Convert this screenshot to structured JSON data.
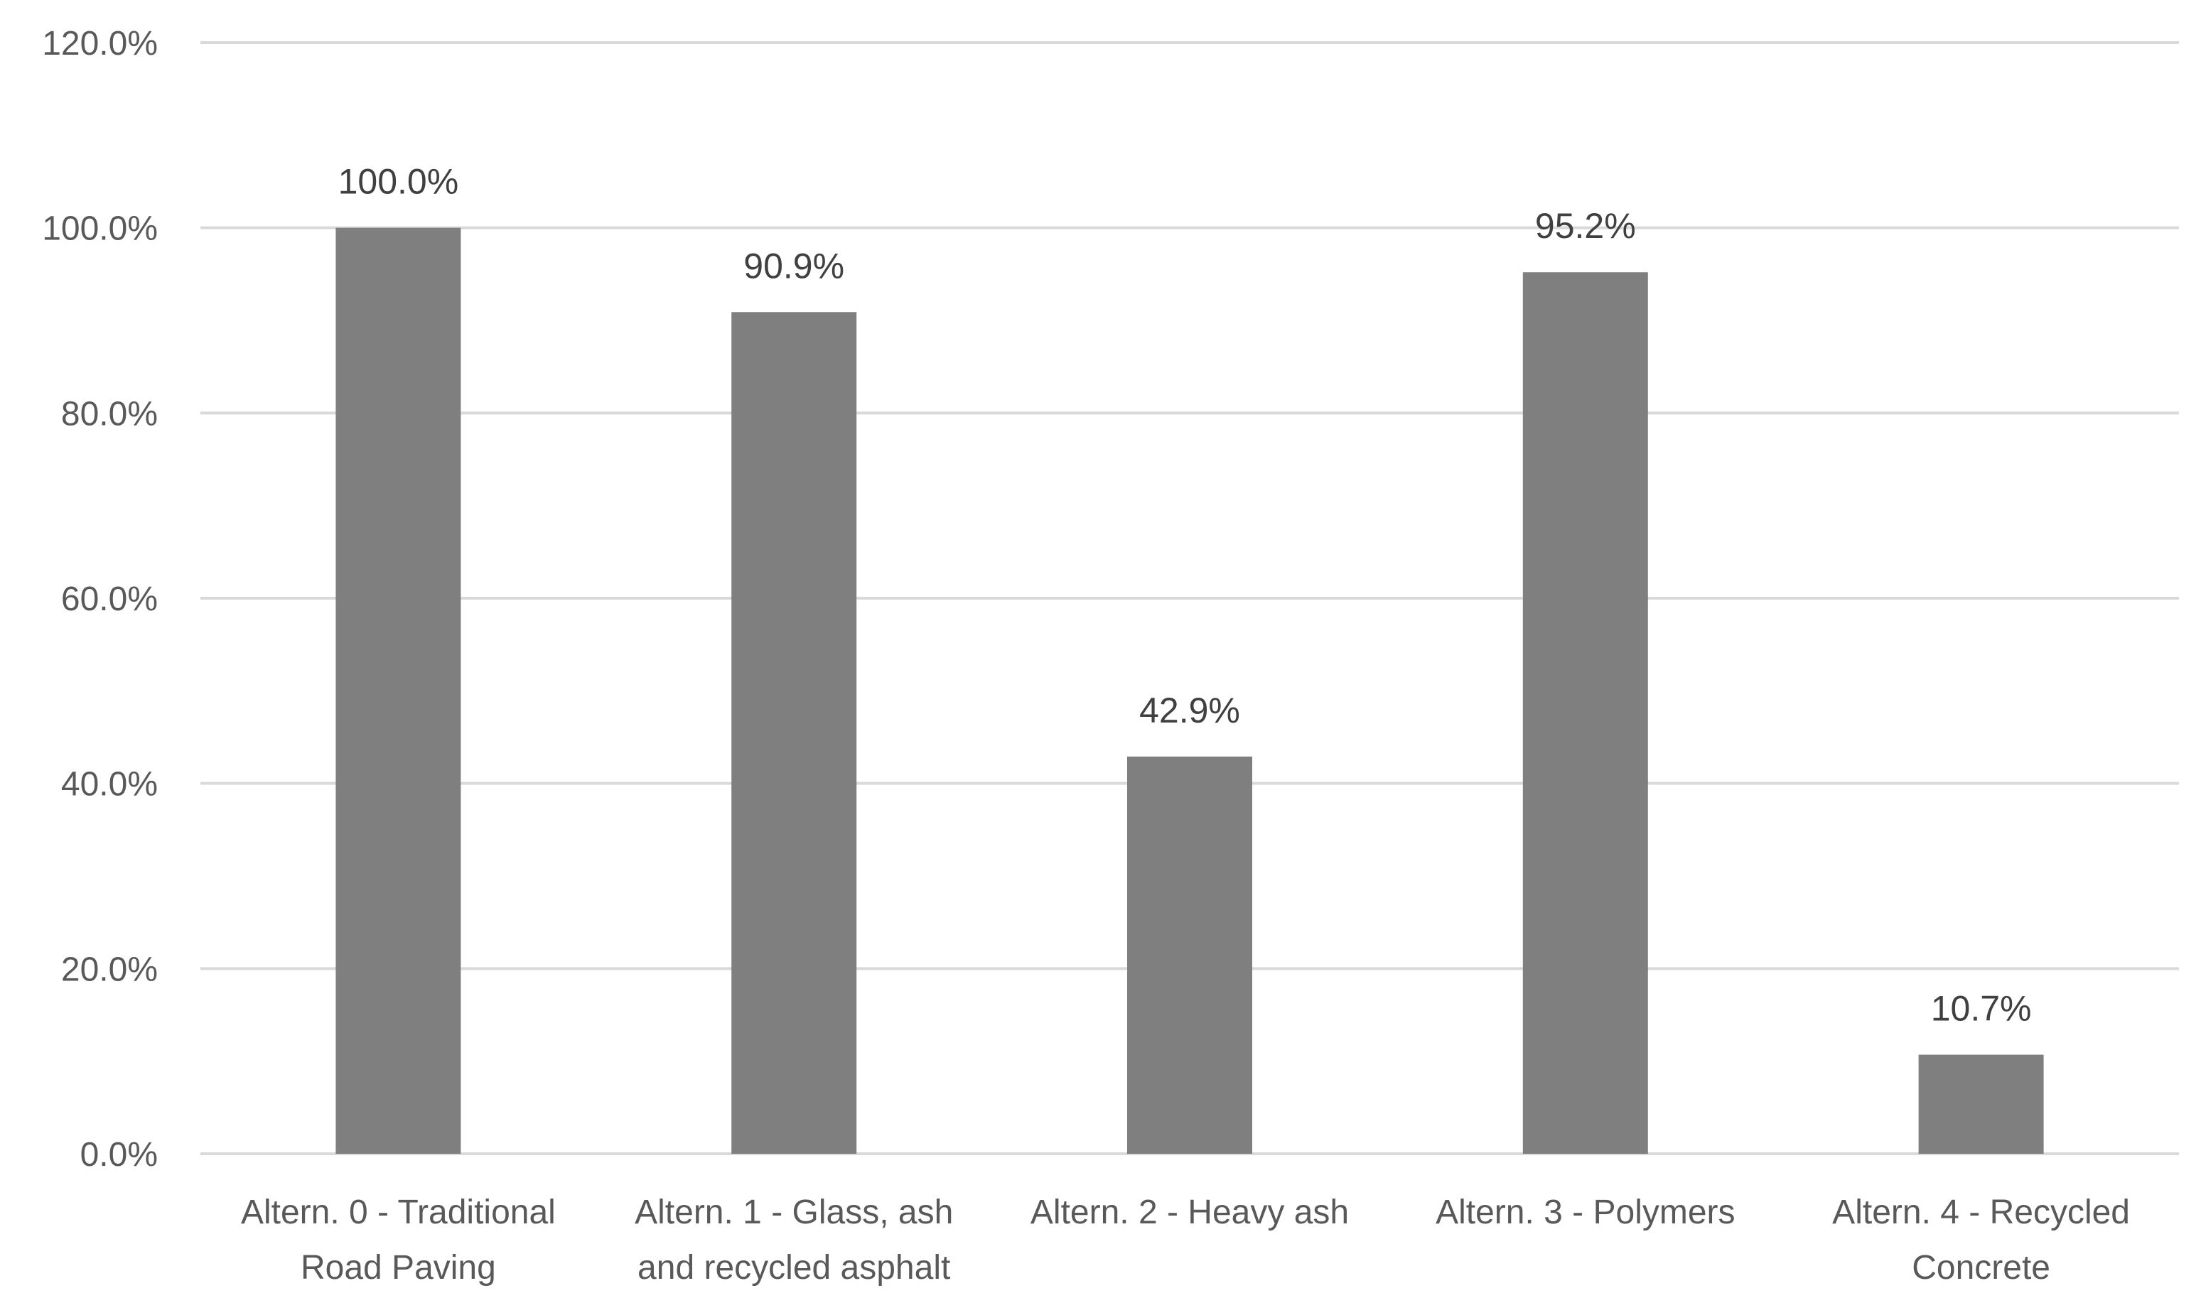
{
  "chart_data": {
    "type": "bar",
    "categories": [
      [
        "Altern. 0 - Traditional",
        "Road Paving"
      ],
      [
        "Altern. 1 - Glass, ash",
        "and recycled asphalt"
      ],
      [
        "Altern. 2 - Heavy ash"
      ],
      [
        "Altern. 3 - Polymers"
      ],
      [
        "Altern. 4 - Recycled",
        "Concrete"
      ]
    ],
    "values": [
      100.0,
      90.9,
      42.9,
      95.2,
      10.7
    ],
    "data_labels": [
      "100.0%",
      "90.9%",
      "42.9%",
      "95.2%",
      "10.7%"
    ],
    "y_ticks": [
      0,
      20,
      40,
      60,
      80,
      100,
      120
    ],
    "y_tick_labels": [
      "0.0%",
      "20.0%",
      "40.0%",
      "60.0%",
      "80.0%",
      "100.0%",
      "120.0%"
    ],
    "ylim": [
      0,
      120
    ],
    "grid": true,
    "legend": "none",
    "colors": {
      "bar": "#7f7f7f",
      "grid": "#d9d9d9",
      "text": "#595959"
    }
  }
}
